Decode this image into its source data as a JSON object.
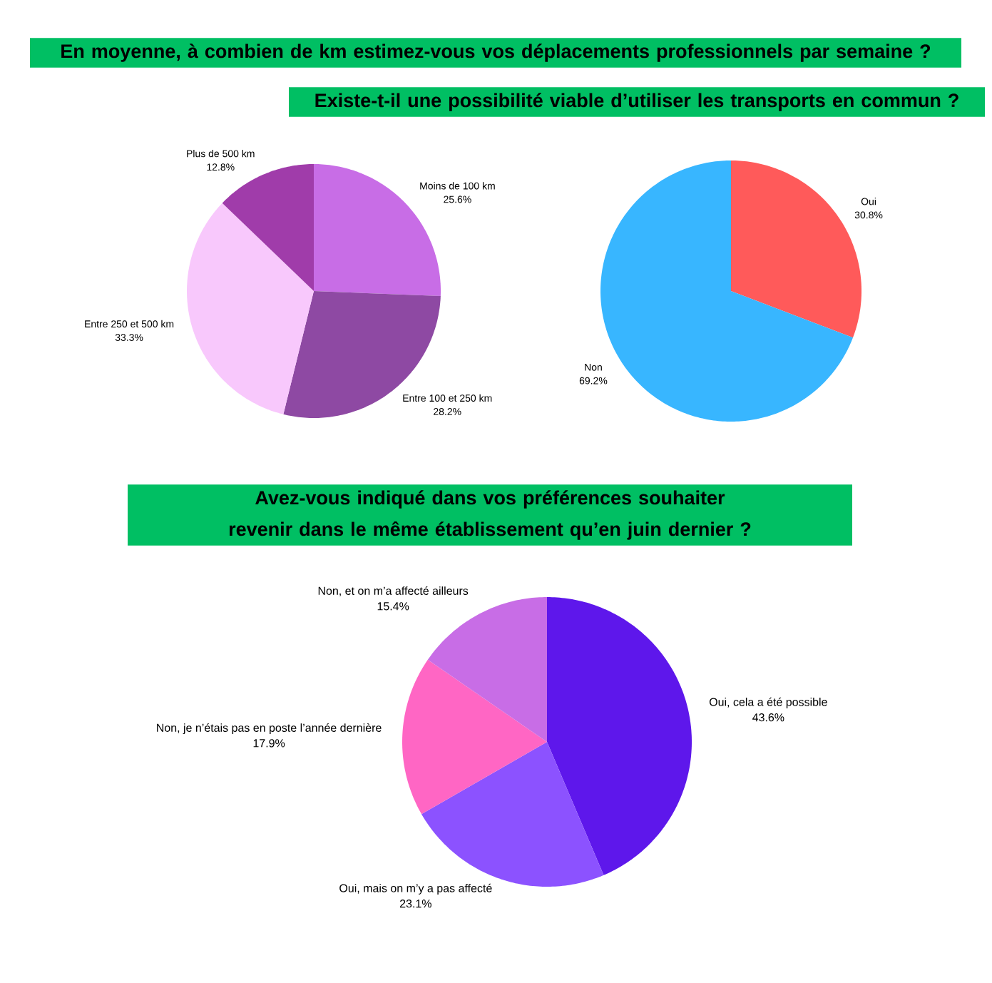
{
  "chart_data": [
    {
      "type": "pie",
      "title": "En moyenne, à combien de km estimez-vous vos déplacements professionnels par semaine ?",
      "categories": [
        "Moins de 100 km",
        "Entre 100 et 250 km",
        "Entre 250 et 500 km",
        "Plus de 500 km"
      ],
      "values": [
        25.6,
        28.2,
        33.3,
        12.8
      ],
      "value_labels": [
        "25.6%",
        "28.2%",
        "33.3%",
        "12.8%"
      ],
      "colors": [
        "#c86de6",
        "#8e49a3",
        "#f8c8fc",
        "#a03caa"
      ]
    },
    {
      "type": "pie",
      "title": "Existe-t-il une possibilité viable d’utiliser les transports en commun ?",
      "categories": [
        "Oui",
        "Non"
      ],
      "values": [
        30.8,
        69.2
      ],
      "value_labels": [
        "30.8%",
        "69.2%"
      ],
      "colors": [
        "#ff5a5a",
        "#38b6ff"
      ]
    },
    {
      "type": "pie",
      "title": "Avez-vous indiqué dans vos préférences souhaiter revenir dans le même établissement qu’en juin dernier ?",
      "categories": [
        "Oui, cela a été possible",
        "Oui, mais on m’y a pas affecté",
        "Non, je n’étais pas en poste l’année dernière",
        "Non, et on m’a affecté ailleurs"
      ],
      "values": [
        43.6,
        23.1,
        17.9,
        15.4
      ],
      "value_labels": [
        "43.6%",
        "23.1%",
        "17.9%",
        "15.4%"
      ],
      "colors": [
        "#5e17eb",
        "#8c52ff",
        "#ff66c4",
        "#c86de6"
      ]
    }
  ]
}
